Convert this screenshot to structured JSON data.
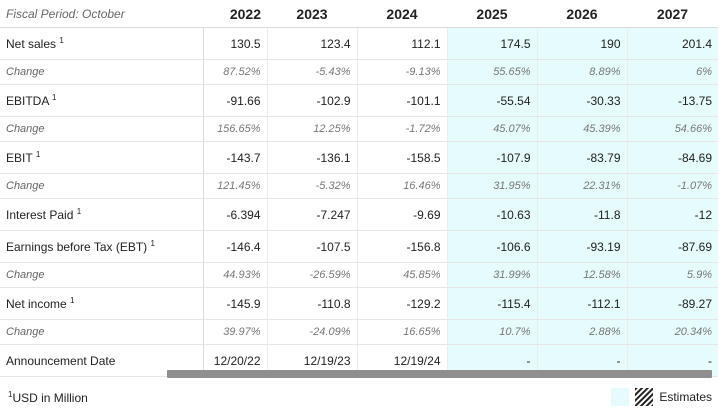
{
  "header": {
    "period_label": "Fiscal Period: October",
    "years": [
      "2022",
      "2023",
      "2024",
      "2025",
      "2026",
      "2027"
    ]
  },
  "rows": [
    {
      "kind": "main",
      "label": "Net sales",
      "note": "1",
      "values": [
        "130.5",
        "123.4",
        "112.1",
        "174.5",
        "190",
        "201.4"
      ]
    },
    {
      "kind": "chg",
      "label": "Change",
      "note": "",
      "values": [
        "87.52%",
        "-5.43%",
        "-9.13%",
        "55.65%",
        "8.89%",
        "6%"
      ]
    },
    {
      "kind": "main",
      "label": "EBITDA",
      "note": "1",
      "values": [
        "-91.66",
        "-102.9",
        "-101.1",
        "-55.54",
        "-30.33",
        "-13.75"
      ]
    },
    {
      "kind": "chg",
      "label": "Change",
      "note": "",
      "values": [
        "156.65%",
        "12.25%",
        "-1.72%",
        "45.07%",
        "45.39%",
        "54.66%"
      ]
    },
    {
      "kind": "main",
      "label": "EBIT",
      "note": "1",
      "values": [
        "-143.7",
        "-136.1",
        "-158.5",
        "-107.9",
        "-83.79",
        "-84.69"
      ]
    },
    {
      "kind": "chg",
      "label": "Change",
      "note": "",
      "values": [
        "121.45%",
        "-5.32%",
        "16.46%",
        "31.95%",
        "22.31%",
        "-1.07%"
      ]
    },
    {
      "kind": "main",
      "label": "Interest Paid",
      "note": "1",
      "values": [
        "-6.394",
        "-7.247",
        "-9.69",
        "-10.63",
        "-11.8",
        "-12"
      ]
    },
    {
      "kind": "main",
      "label": "Earnings before Tax (EBT)",
      "note": "1",
      "values": [
        "-146.4",
        "-107.5",
        "-156.8",
        "-106.6",
        "-93.19",
        "-87.69"
      ]
    },
    {
      "kind": "chg",
      "label": "Change",
      "note": "",
      "values": [
        "44.93%",
        "-26.59%",
        "45.85%",
        "31.99%",
        "12.58%",
        "5.9%"
      ]
    },
    {
      "kind": "main",
      "label": "Net income",
      "note": "1",
      "values": [
        "-145.9",
        "-110.8",
        "-129.2",
        "-115.4",
        "-112.1",
        "-89.27"
      ]
    },
    {
      "kind": "chg",
      "label": "Change",
      "note": "",
      "values": [
        "39.97%",
        "-24.09%",
        "16.65%",
        "10.7%",
        "2.88%",
        "20.34%"
      ]
    },
    {
      "kind": "main",
      "label": "Announcement Date",
      "note": "",
      "values": [
        "12/20/22",
        "12/19/23",
        "12/19/24",
        "-",
        "-",
        "-"
      ]
    }
  ],
  "estimate_columns": [
    3,
    4,
    5
  ],
  "footer": {
    "footnote_mark": "1",
    "footnote_text": "USD in Million",
    "legend_label": "Estimates"
  },
  "colors": {
    "estimate_bg": "#e6fbfc",
    "scrollbar": "#8f8f8f"
  }
}
